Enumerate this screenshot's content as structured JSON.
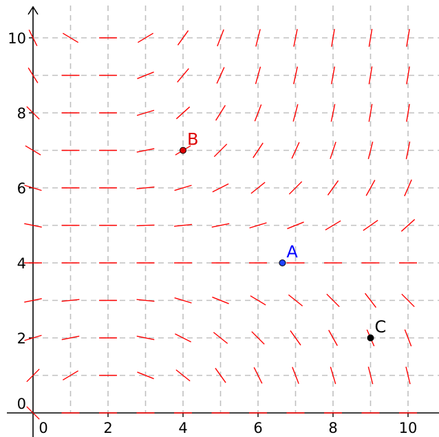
{
  "diagram": {
    "type": "slope_field",
    "x_range": [
      0,
      10
    ],
    "y_range": [
      0,
      10
    ],
    "grid_step": 1,
    "x_tick_labels": [
      "0",
      "2",
      "4",
      "6",
      "8",
      "10"
    ],
    "y_tick_labels": [
      "0",
      "2",
      "4",
      "6",
      "8",
      "10"
    ],
    "segment_color": "#ff0000",
    "slopes": [
      [
        -1.0,
        0.0,
        0.0,
        0.0,
        0.0,
        0.0,
        0.0,
        0.0,
        0.0,
        0.0,
        0.0
      ],
      [
        1.0,
        0.6,
        0.0,
        -0.4,
        -0.8,
        -1.4,
        -2.0,
        -2.6,
        -3.4,
        -4.0,
        -4.2
      ],
      [
        0.3,
        0.2,
        0.0,
        -0.2,
        -0.5,
        -0.8,
        -1.0,
        -1.4,
        -1.8,
        -2.3,
        -2.6
      ],
      [
        0.2,
        0.1,
        0.0,
        -0.1,
        -0.3,
        -0.4,
        -0.6,
        -0.8,
        -1.0,
        -1.3,
        -1.0
      ],
      [
        0.0,
        0.0,
        0.0,
        0.0,
        0.0,
        0.0,
        0.0,
        0.0,
        0.0,
        0.0,
        0.0
      ],
      [
        -0.2,
        0.0,
        0.0,
        0.03,
        0.1,
        0.2,
        0.3,
        0.4,
        0.6,
        0.7,
        0.9
      ],
      [
        -0.3,
        0.0,
        0.0,
        0.1,
        0.3,
        0.5,
        0.8,
        1.0,
        1.4,
        1.8,
        2.3
      ],
      [
        -0.6,
        0.0,
        0.0,
        0.2,
        0.6,
        1.0,
        1.5,
        2.2,
        3.0,
        4.0,
        5.0
      ],
      [
        -1.0,
        0.0,
        0.0,
        0.3,
        0.9,
        1.6,
        2.6,
        3.8,
        4.8,
        5.8,
        6.0
      ],
      [
        -1.6,
        0.0,
        0.0,
        0.4,
        1.2,
        2.2,
        3.6,
        4.6,
        5.5,
        6.0,
        6.0
      ],
      [
        -2.0,
        -0.6,
        0.0,
        0.6,
        1.4,
        2.6,
        4.0,
        5.0,
        6.0,
        6.0,
        6.0
      ]
    ],
    "points": [
      {
        "label": "A",
        "x": 6.65,
        "y": 4.0,
        "color": "#0000ff",
        "fill": "#2244ff"
      },
      {
        "label": "B",
        "x": 4.0,
        "y": 7.0,
        "color": "#dd0000",
        "fill": "#dd0000"
      },
      {
        "label": "C",
        "x": 9.0,
        "y": 2.0,
        "color": "#000000",
        "fill": "#000000"
      }
    ]
  }
}
